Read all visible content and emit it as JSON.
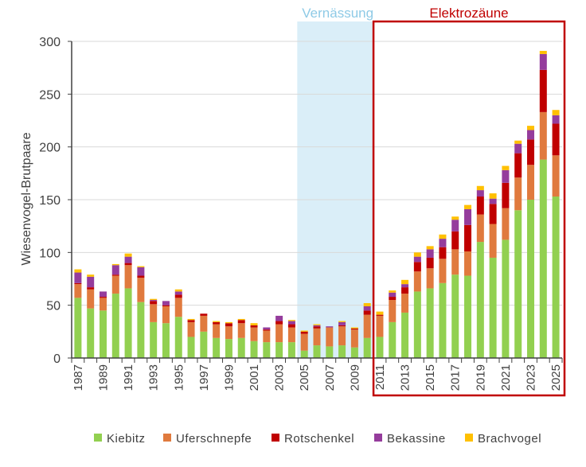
{
  "chart_data": {
    "type": "bar",
    "stacked": true,
    "title": "",
    "xlabel": "",
    "ylabel": "Wiesenvogel-Brutpaare",
    "ylim": [
      0,
      300
    ],
    "yticks": [
      0,
      50,
      100,
      150,
      200,
      250,
      300
    ],
    "grid": true,
    "legend_position": "bottom",
    "categories": [
      1987,
      1988,
      1989,
      1990,
      1991,
      1992,
      1993,
      1994,
      1995,
      1996,
      1997,
      1998,
      1999,
      2000,
      2001,
      2002,
      2003,
      2004,
      2005,
      2006,
      2007,
      2008,
      2009,
      2010,
      2011,
      2012,
      2013,
      2014,
      2015,
      2016,
      2017,
      2018,
      2019,
      2020,
      2021,
      2022,
      2023,
      2024,
      2025
    ],
    "xtick_labels": [
      "1987",
      "1989",
      "1991",
      "1993",
      "1995",
      "1997",
      "1999",
      "2001",
      "2003",
      "2005",
      "2007",
      "2009",
      "2011",
      "2013",
      "2015",
      "2017",
      "2019",
      "2021",
      "2023",
      "2025"
    ],
    "series": [
      {
        "name": "Kiebitz",
        "color": "#92d050",
        "values": [
          57,
          47,
          45,
          61,
          66,
          53,
          34,
          33,
          39,
          20,
          25,
          19,
          18,
          19,
          16,
          15,
          15,
          15,
          7,
          12,
          11,
          12,
          10,
          19,
          20,
          34,
          43,
          63,
          66,
          71,
          79,
          78,
          110,
          95,
          112,
          140,
          150,
          188,
          153
        ]
      },
      {
        "name": "Uferschnepfe",
        "color": "#e07a3e",
        "values": [
          13,
          18,
          12,
          17,
          22,
          23,
          17,
          16,
          18,
          14,
          15,
          13,
          12,
          14,
          13,
          11,
          17,
          14,
          16,
          16,
          18,
          18,
          17,
          22,
          20,
          21,
          18,
          19,
          19,
          23,
          24,
          23,
          26,
          32,
          30,
          31,
          33,
          45,
          39
        ]
      },
      {
        "name": "Rotschenkel",
        "color": "#c00000",
        "values": [
          1,
          2,
          1,
          1,
          2,
          2,
          3,
          1,
          3,
          2,
          2,
          2,
          3,
          3,
          2,
          1,
          3,
          3,
          2,
          2,
          0,
          1,
          1,
          4,
          1,
          3,
          6,
          9,
          10,
          11,
          17,
          25,
          17,
          19,
          24,
          23,
          24,
          40,
          30
        ]
      },
      {
        "name": "Bekassine",
        "color": "#953c9c",
        "values": [
          10,
          10,
          5,
          9,
          6,
          8,
          1,
          4,
          3,
          0,
          0,
          0,
          0,
          0,
          0,
          2,
          5,
          3,
          0,
          1,
          1,
          3,
          0,
          4,
          0,
          4,
          3,
          5,
          8,
          8,
          11,
          15,
          6,
          5,
          12,
          9,
          9,
          15,
          8
        ]
      },
      {
        "name": "Brachvogel",
        "color": "#ffc000",
        "values": [
          3,
          2,
          0,
          1,
          3,
          1,
          1,
          0,
          2,
          1,
          0,
          1,
          1,
          1,
          2,
          0,
          0,
          1,
          1,
          1,
          0,
          1,
          1,
          3,
          3,
          2,
          4,
          4,
          3,
          4,
          3,
          4,
          4,
          5,
          4,
          3,
          4,
          3,
          5
        ]
      }
    ],
    "annotations": [
      {
        "text": "Vernässung",
        "color": "#8ecae6",
        "from": 2005,
        "to": 2010
      },
      {
        "text": "Elektrozäune",
        "color": "#c00000",
        "from": 2011,
        "to": 2025
      }
    ]
  }
}
